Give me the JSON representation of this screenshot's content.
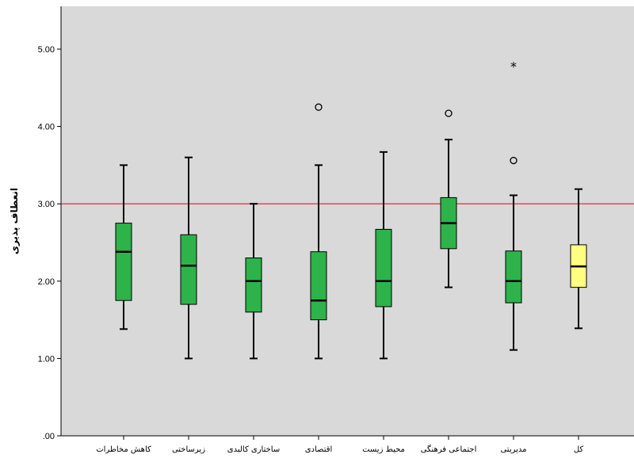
{
  "chart_data": {
    "type": "boxplot",
    "ylabel": "انعطاف پذیری",
    "ylim": [
      0,
      5.5
    ],
    "yticks": [
      ".00",
      "1.00",
      "2.00",
      "3.00",
      "4.00",
      "5.00"
    ],
    "ytick_values": [
      0,
      1,
      2,
      3,
      4,
      5
    ],
    "reference_line": {
      "y": 3.0,
      "color": "#e8474d"
    },
    "plot_background": "#d9d9d9",
    "categories": [
      "کاهش مخاطرات",
      "زیرساختی",
      "ساختاری کالبدی",
      "اقتصادی",
      "محیط زیست",
      "اجتماعی فرهنگی",
      "مدیریتی",
      "کل"
    ],
    "boxes": [
      {
        "category": "کاهش مخاطرات",
        "min": 1.38,
        "q1": 1.75,
        "median": 2.38,
        "q3": 2.75,
        "max": 3.5,
        "color": "#2db34a",
        "outliers": [],
        "extremes": []
      },
      {
        "category": "زیرساختی",
        "min": 1.0,
        "q1": 1.7,
        "median": 2.2,
        "q3": 2.6,
        "max": 3.6,
        "color": "#2db34a",
        "outliers": [],
        "extremes": []
      },
      {
        "category": "ساختاری کالبدی",
        "min": 1.0,
        "q1": 1.6,
        "median": 2.0,
        "q3": 2.3,
        "max": 3.0,
        "color": "#2db34a",
        "outliers": [],
        "extremes": []
      },
      {
        "category": "اقتصادی",
        "min": 1.0,
        "q1": 1.5,
        "median": 1.75,
        "q3": 2.38,
        "max": 3.5,
        "color": "#2db34a",
        "outliers": [
          4.25
        ],
        "extremes": []
      },
      {
        "category": "محیط زیست",
        "min": 1.0,
        "q1": 1.67,
        "median": 2.0,
        "q3": 2.67,
        "max": 3.67,
        "color": "#2db34a",
        "outliers": [],
        "extremes": []
      },
      {
        "category": "اجتماعی فرهنگی",
        "min": 1.92,
        "q1": 2.42,
        "median": 2.75,
        "q3": 3.08,
        "max": 3.83,
        "color": "#2db34a",
        "outliers": [
          4.17
        ],
        "extremes": []
      },
      {
        "category": "مدیریتی",
        "min": 1.11,
        "q1": 1.72,
        "median": 2.0,
        "q3": 2.39,
        "max": 3.11,
        "color": "#2db34a",
        "outliers": [
          3.56
        ],
        "extremes": [
          4.78
        ]
      },
      {
        "category": "کل",
        "min": 1.39,
        "q1": 1.92,
        "median": 2.19,
        "q3": 2.47,
        "max": 3.19,
        "color": "#ffff80",
        "outliers": [],
        "extremes": []
      }
    ]
  }
}
